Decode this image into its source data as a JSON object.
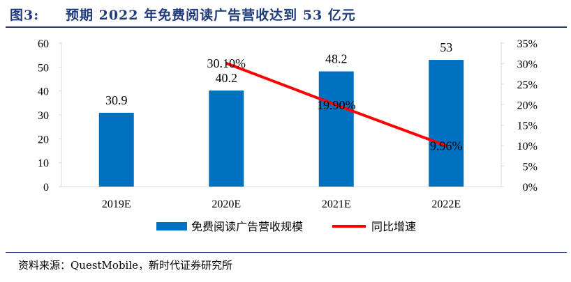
{
  "header": {
    "figure_label": "图3:",
    "figure_title": "预期 2022 年免费阅读广告营收达到 53 亿元"
  },
  "source_note": "资料来源：QuestMobile，新时代证券研究所",
  "colors": {
    "bar": "#0070c0",
    "line": "#ff0000",
    "title": "#1f3b7a",
    "axis": "#d9d9d9"
  },
  "chart_data": {
    "type": "bar",
    "categories": [
      "2019E",
      "2020E",
      "2021E",
      "2022E"
    ],
    "series": [
      {
        "name": "免费阅读广告营收规模",
        "kind": "bar",
        "axis": "left",
        "values": [
          30.9,
          40.2,
          48.2,
          53
        ],
        "labels": [
          "30.9",
          "40.2",
          "48.2",
          "53"
        ]
      },
      {
        "name": "同比增速",
        "kind": "line",
        "axis": "right",
        "values": [
          null,
          30.1,
          19.9,
          9.96
        ],
        "labels": [
          "",
          "30.10%",
          "19.90%",
          "9.96%"
        ]
      }
    ],
    "ylim_left": [
      0,
      60
    ],
    "yticks_left": [
      "0",
      "10",
      "20",
      "30",
      "40",
      "50",
      "60"
    ],
    "ylim_right": [
      0,
      35
    ],
    "yticks_right": [
      "0%",
      "5%",
      "10%",
      "15%",
      "20%",
      "25%",
      "30%",
      "35%"
    ],
    "legend_position": "bottom",
    "grid": false
  }
}
